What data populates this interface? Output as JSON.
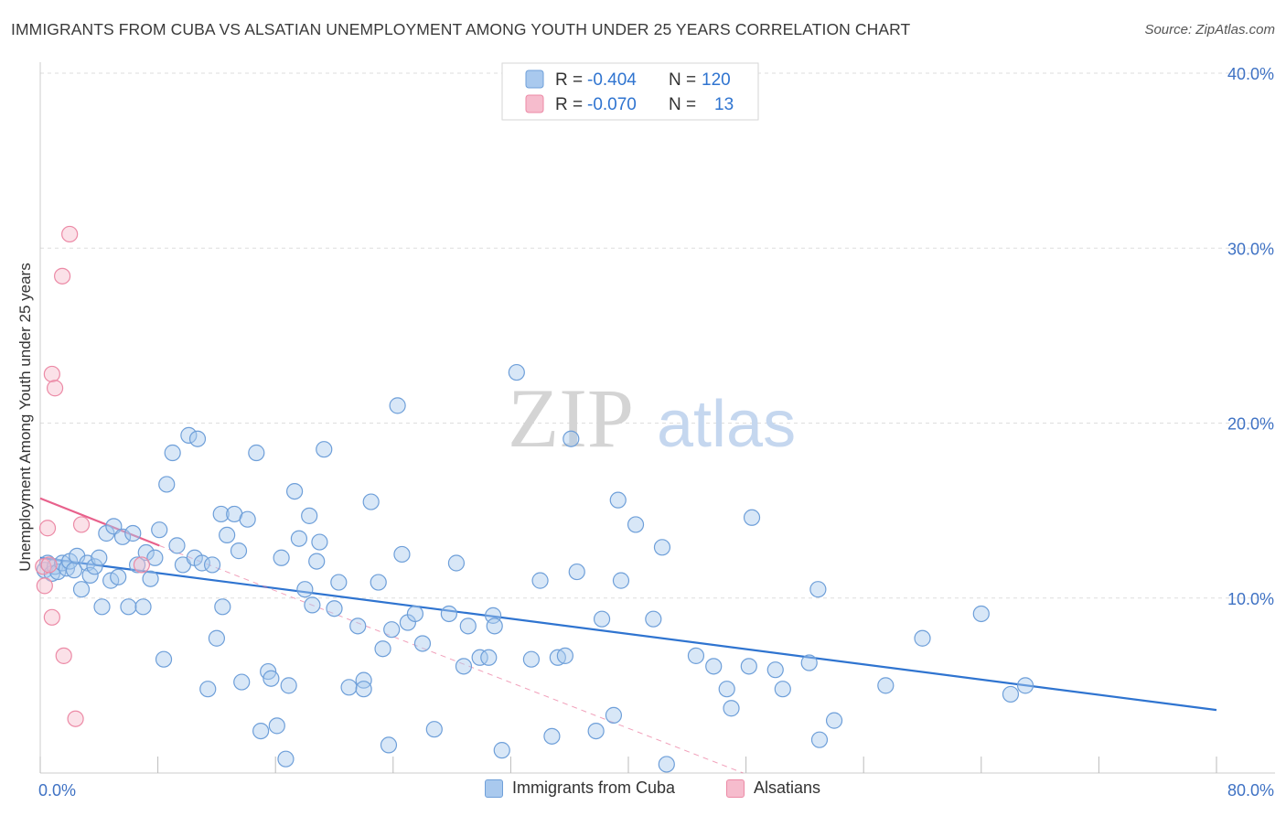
{
  "title": "IMMIGRANTS FROM CUBA VS ALSATIAN UNEMPLOYMENT AMONG YOUTH UNDER 25 YEARS CORRELATION CHART",
  "source": "Source: ZipAtlas.com",
  "watermark": {
    "zip": "ZIP",
    "atlas": "atlas"
  },
  "legend_top": [
    {
      "r_label": "R =",
      "r_value": "-0.404",
      "n_label": "N =",
      "n_value": "120",
      "color": "#a9c9ee"
    },
    {
      "r_label": "R =",
      "r_value": "-0.070",
      "n_label": "N =",
      "n_value": "13",
      "color": "#f6bccd"
    }
  ],
  "colors": {
    "blue_fill": "#a9c9ee",
    "blue_stroke": "#6e9fd9",
    "blue_line": "#2f74d0",
    "pink_fill": "#f6bccd",
    "pink_stroke": "#ec8aa6",
    "pink_line": "#e8618c",
    "axis_text": "#3f72c4",
    "grid": "#dddddd"
  },
  "chart_data": {
    "type": "scatter",
    "title": "IMMIGRANTS FROM CUBA VS ALSATIAN UNEMPLOYMENT AMONG YOUTH UNDER 25 YEARS CORRELATION CHART",
    "xlabel": "",
    "ylabel": "Unemployment Among Youth under 25 years",
    "xlim": [
      0,
      80
    ],
    "ylim": [
      0,
      40
    ],
    "x_tick_labels": [
      "0.0%",
      "80.0%"
    ],
    "y_ticks": [
      10,
      20,
      30,
      40
    ],
    "y_tick_labels": [
      "10.0%",
      "20.0%",
      "30.0%",
      "40.0%"
    ],
    "legend_bottom": [
      "Immigrants from Cuba",
      "Alsatians"
    ],
    "series": [
      {
        "name": "Immigrants from Cuba",
        "r": -0.404,
        "n": 120,
        "trend": {
          "x": [
            0,
            80
          ],
          "y": [
            12.3,
            3.6
          ]
        },
        "points": [
          [
            0.3,
            11.6
          ],
          [
            0.5,
            12.0
          ],
          [
            0.8,
            11.4
          ],
          [
            1.0,
            11.8
          ],
          [
            1.2,
            11.5
          ],
          [
            1.5,
            12.0
          ],
          [
            1.8,
            11.7
          ],
          [
            2.0,
            12.1
          ],
          [
            2.3,
            11.6
          ],
          [
            2.5,
            12.4
          ],
          [
            2.8,
            10.5
          ],
          [
            3.2,
            12.0
          ],
          [
            3.4,
            11.3
          ],
          [
            3.7,
            11.8
          ],
          [
            4.0,
            12.3
          ],
          [
            4.2,
            9.5
          ],
          [
            4.5,
            13.7
          ],
          [
            4.8,
            11.0
          ],
          [
            5.0,
            14.1
          ],
          [
            5.3,
            11.2
          ],
          [
            5.6,
            13.5
          ],
          [
            6.0,
            9.5
          ],
          [
            6.3,
            13.7
          ],
          [
            6.6,
            11.9
          ],
          [
            7.0,
            9.5
          ],
          [
            7.2,
            12.6
          ],
          [
            7.5,
            11.1
          ],
          [
            7.8,
            12.3
          ],
          [
            8.1,
            13.9
          ],
          [
            8.4,
            6.5
          ],
          [
            8.6,
            16.5
          ],
          [
            9.0,
            18.3
          ],
          [
            9.3,
            13.0
          ],
          [
            9.7,
            11.9
          ],
          [
            10.1,
            19.3
          ],
          [
            10.5,
            12.3
          ],
          [
            10.7,
            19.1
          ],
          [
            11.0,
            12.0
          ],
          [
            11.4,
            4.8
          ],
          [
            11.7,
            11.9
          ],
          [
            12.0,
            7.7
          ],
          [
            12.3,
            14.8
          ],
          [
            12.4,
            9.5
          ],
          [
            12.7,
            13.6
          ],
          [
            13.2,
            14.8
          ],
          [
            13.5,
            12.7
          ],
          [
            13.7,
            5.2
          ],
          [
            14.1,
            14.5
          ],
          [
            14.7,
            18.3
          ],
          [
            15.0,
            2.4
          ],
          [
            15.5,
            5.8
          ],
          [
            15.7,
            5.4
          ],
          [
            16.1,
            2.7
          ],
          [
            16.4,
            12.3
          ],
          [
            16.7,
            0.8
          ],
          [
            16.9,
            5.0
          ],
          [
            17.3,
            16.1
          ],
          [
            17.6,
            13.4
          ],
          [
            18.0,
            10.5
          ],
          [
            18.3,
            14.7
          ],
          [
            18.5,
            9.6
          ],
          [
            18.8,
            12.1
          ],
          [
            19.0,
            13.2
          ],
          [
            19.3,
            18.5
          ],
          [
            20.0,
            9.4
          ],
          [
            20.3,
            10.9
          ],
          [
            21.0,
            4.9
          ],
          [
            21.6,
            8.4
          ],
          [
            22.0,
            5.3
          ],
          [
            22.5,
            15.5
          ],
          [
            23.0,
            10.9
          ],
          [
            23.3,
            7.1
          ],
          [
            23.7,
            1.6
          ],
          [
            23.9,
            8.2
          ],
          [
            24.3,
            21.0
          ],
          [
            24.6,
            12.5
          ],
          [
            25.0,
            8.6
          ],
          [
            25.5,
            9.1
          ],
          [
            26.0,
            7.4
          ],
          [
            26.8,
            2.5
          ],
          [
            27.8,
            9.1
          ],
          [
            28.3,
            12.0
          ],
          [
            28.8,
            6.1
          ],
          [
            29.1,
            8.4
          ],
          [
            29.9,
            6.6
          ],
          [
            30.5,
            6.6
          ],
          [
            30.8,
            9.0
          ],
          [
            30.9,
            8.4
          ],
          [
            31.4,
            1.3
          ],
          [
            32.4,
            22.9
          ],
          [
            33.4,
            6.5
          ],
          [
            34.0,
            11.0
          ],
          [
            34.8,
            2.1
          ],
          [
            35.2,
            6.6
          ],
          [
            35.7,
            6.7
          ],
          [
            36.1,
            19.1
          ],
          [
            36.5,
            11.5
          ],
          [
            37.8,
            2.4
          ],
          [
            38.2,
            8.8
          ],
          [
            39.0,
            3.3
          ],
          [
            39.3,
            15.6
          ],
          [
            39.5,
            11.0
          ],
          [
            40.5,
            14.2
          ],
          [
            41.7,
            8.8
          ],
          [
            42.3,
            12.9
          ],
          [
            42.6,
            0.5
          ],
          [
            44.6,
            6.7
          ],
          [
            45.8,
            6.1
          ],
          [
            46.7,
            4.8
          ],
          [
            47.0,
            3.7
          ],
          [
            48.2,
            6.1
          ],
          [
            48.4,
            14.6
          ],
          [
            50.0,
            5.9
          ],
          [
            50.5,
            4.8
          ],
          [
            52.3,
            6.3
          ],
          [
            52.9,
            10.5
          ],
          [
            54.0,
            3.0
          ],
          [
            57.5,
            5.0
          ],
          [
            60.0,
            7.7
          ],
          [
            64.0,
            9.1
          ],
          [
            66.0,
            4.5
          ],
          [
            67.0,
            5.0
          ],
          [
            53.0,
            1.9
          ],
          [
            22.0,
            4.8
          ]
        ]
      },
      {
        "name": "Alsatians",
        "r": -0.07,
        "n": 13,
        "trend": {
          "x": [
            0,
            8.1
          ],
          "y": [
            15.7,
            13.0
          ]
        },
        "trend_extension": {
          "x": [
            8.1,
            47.8
          ],
          "y": [
            13.0,
            0.0
          ]
        },
        "points": [
          [
            0.2,
            11.8
          ],
          [
            0.3,
            10.7
          ],
          [
            0.5,
            14.0
          ],
          [
            0.6,
            11.9
          ],
          [
            0.8,
            22.8
          ],
          [
            0.8,
            8.9
          ],
          [
            1.0,
            22.0
          ],
          [
            1.5,
            28.4
          ],
          [
            1.6,
            6.7
          ],
          [
            2.0,
            30.8
          ],
          [
            2.4,
            3.1
          ],
          [
            2.8,
            14.2
          ],
          [
            6.9,
            11.9
          ]
        ]
      }
    ]
  }
}
